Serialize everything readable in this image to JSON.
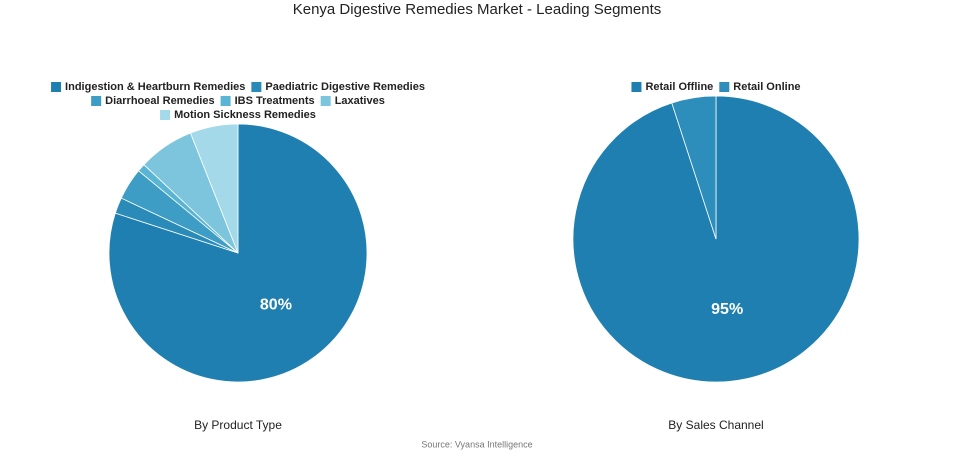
{
  "title": "Kenya Digestive Remedies Market - Leading Segments",
  "source": "Source: Vyansa Intelligence",
  "chart_data": [
    {
      "type": "pie",
      "title": "By Product Type",
      "categories": [
        "Indigestion & Heartburn Remedies",
        "Paediatric Digestive Remedies",
        "Diarrhoeal Remedies",
        "IBS Treatments",
        "Laxatives",
        "Motion Sickness Remedies"
      ],
      "values": [
        80,
        2,
        4,
        1,
        7,
        6
      ],
      "value_labels": [
        "80%",
        null,
        null,
        null,
        null,
        null
      ],
      "colors": [
        "#1f7fb0",
        "#2a8bb8",
        "#3d9dc4",
        "#5ab4d4",
        "#7cc5dc",
        "#a3d9e8"
      ]
    },
    {
      "type": "pie",
      "title": "By Sales Channel",
      "categories": [
        "Retail Offline",
        "Retail Online"
      ],
      "values": [
        95,
        5
      ],
      "value_labels": [
        "95%",
        null
      ],
      "colors": [
        "#1f7fb0",
        "#2e8ebb"
      ]
    }
  ]
}
